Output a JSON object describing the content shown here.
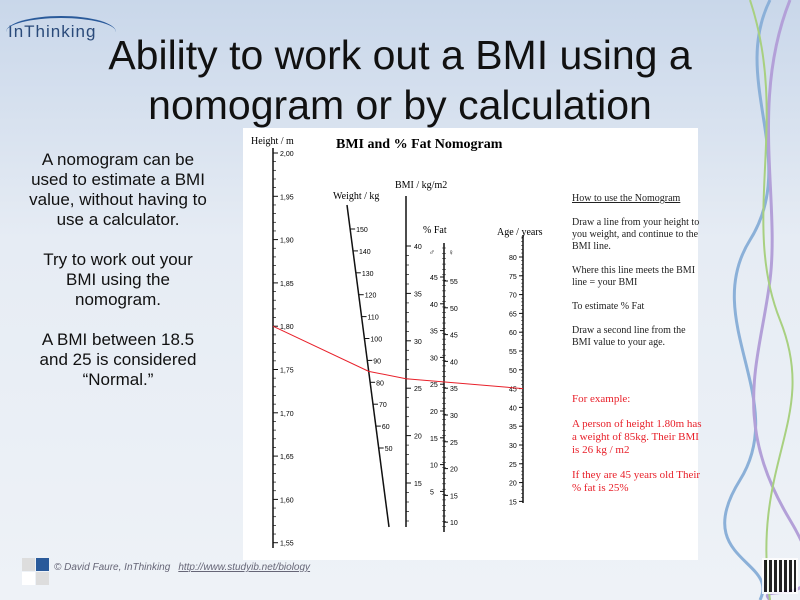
{
  "logo": {
    "text": "InThinking"
  },
  "title": "Ability to work out a BMI using a nomogram or by calculation",
  "left_text": [
    "A nomogram can be used to estimate a BMI value, without having to use a calculator.",
    "Try to work out your BMI using the nomogram.",
    "A BMI between 18.5 and 25 is considered “Normal.”"
  ],
  "nomogram": {
    "title": "BMI and % Fat Nomogram",
    "height_label": "Height / m",
    "height_ticks": [
      "2,00",
      "1,95",
      "1,90",
      "1,85",
      "1,80",
      "1,75",
      "1,70",
      "1,65",
      "1,60",
      "1,55"
    ],
    "weight_label": "Weight / kg",
    "weight_ticks": [
      "150",
      "140",
      "130",
      "120",
      "110",
      "100",
      "90",
      "80",
      "70",
      "60",
      "50"
    ],
    "bmi_label": "BMI / kg/m2",
    "bmi_ticks": [
      "40",
      "35",
      "30",
      "25",
      "20",
      "15"
    ],
    "fat_label": "% Fat",
    "male_symbol": "♂",
    "female_symbol": "♀",
    "fat_male_ticks": [
      "45",
      "40",
      "35",
      "30",
      "25",
      "20",
      "15",
      "10",
      "5"
    ],
    "fat_female_ticks": [
      "55",
      "50",
      "45",
      "40",
      "35",
      "30",
      "25",
      "20",
      "15",
      "10"
    ],
    "age_label": "Age / years",
    "age_ticks": [
      "80",
      "75",
      "70",
      "65",
      "60",
      "55",
      "50",
      "45",
      "40",
      "35",
      "30",
      "25",
      "20",
      "15"
    ],
    "example_line": {
      "height": 1.8,
      "weight": 85,
      "bmi": 26,
      "age": 45
    },
    "line_color": "#e8202a",
    "how_title": "How to use the Nomogram",
    "steps": [
      "Draw a line from your height to you weight, and continue to the BMI line.",
      "Where this line meets the BMI line = your BMI",
      "To estimate % Fat",
      "Draw a second line from the BMI value to your age."
    ],
    "example_title": "For example:",
    "example_1": "A person of height 1.80m has a weight of 85kg. Their BMI is 26 kg / m2",
    "example_2": "If they are 45 years old Their % fat is 25%"
  },
  "footer": {
    "credit": "© David Faure, InThinking",
    "link": "http://www.studyib.net/biology"
  }
}
